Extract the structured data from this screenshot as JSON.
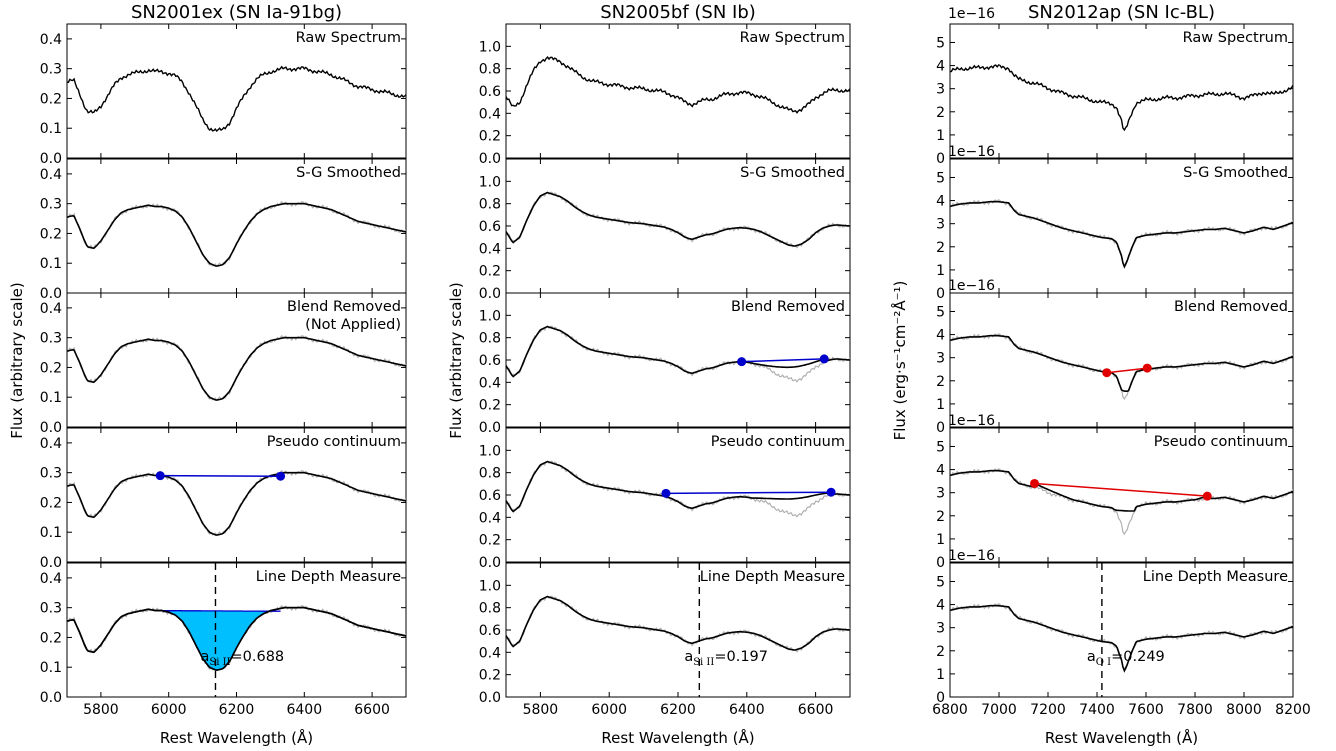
{
  "chart_data": [
    {
      "type": "line",
      "title": "SN2001ex (SN Ia-91bg)",
      "xlabel": "Rest Wavelength (Å)",
      "ylabel": "Flux (arbitrary scale)",
      "xlim": [
        5700,
        6700
      ],
      "ylim": [
        0,
        0.45
      ],
      "xticks": [
        "5800",
        "6000",
        "6200",
        "6400",
        "6600"
      ],
      "yticks": [
        "0.0",
        "0.1",
        "0.2",
        "0.3",
        "0.4"
      ],
      "colors": {
        "line": "#000000",
        "raw_gray": "#b0b0b0",
        "accent": "#0000cc",
        "fill": "#00bfff"
      },
      "panels": [
        {
          "label": "Raw Spectrum"
        },
        {
          "label": "S-G Smoothed"
        },
        {
          "label": "Blend Removed",
          "note": "(Not Applied)"
        },
        {
          "label": "Pseudo continuum",
          "endpoints": [
            [
              5975,
              0.29
            ],
            [
              6330,
              0.288
            ]
          ]
        },
        {
          "label": "Line Depth Measure",
          "dashed_x": 6138,
          "measure_text": "=0.688",
          "measure_symbol": "a",
          "measure_sub": "Si II"
        }
      ],
      "series": [
        {
          "x": [
            5700,
            5720,
            5740,
            5750,
            5760,
            5780,
            5800,
            5820,
            5840,
            5860,
            5880,
            5900,
            5920,
            5940,
            5960,
            5980,
            6000,
            6020,
            6040,
            6060,
            6080,
            6100,
            6120,
            6140,
            6160,
            6180,
            6200,
            6220,
            6240,
            6260,
            6280,
            6300,
            6320,
            6340,
            6360,
            6380,
            6400,
            6420,
            6440,
            6460,
            6480,
            6500,
            6520,
            6540,
            6560,
            6580,
            6600,
            6620,
            6640,
            6660,
            6680,
            6700
          ],
          "y": [
            0.255,
            0.26,
            0.21,
            0.18,
            0.155,
            0.15,
            0.175,
            0.21,
            0.245,
            0.27,
            0.28,
            0.285,
            0.29,
            0.295,
            0.29,
            0.29,
            0.285,
            0.275,
            0.255,
            0.22,
            0.175,
            0.13,
            0.1,
            0.09,
            0.095,
            0.12,
            0.165,
            0.205,
            0.24,
            0.265,
            0.28,
            0.29,
            0.295,
            0.3,
            0.3,
            0.3,
            0.3,
            0.295,
            0.29,
            0.285,
            0.28,
            0.27,
            0.26,
            0.25,
            0.24,
            0.235,
            0.23,
            0.225,
            0.22,
            0.215,
            0.21,
            0.205
          ]
        }
      ]
    },
    {
      "type": "line",
      "title": "SN2005bf (SN Ib)",
      "xlabel": "Rest Wavelength (Å)",
      "ylabel": "Flux (arbitrary scale)",
      "xlim": [
        5700,
        6700
      ],
      "ylim": [
        0,
        1.2
      ],
      "xticks": [
        "5800",
        "6000",
        "6200",
        "6400",
        "6600"
      ],
      "yticks": [
        "0.0",
        "0.2",
        "0.4",
        "0.6",
        "0.8",
        "1.0"
      ],
      "colors": {
        "line": "#000000",
        "raw_gray": "#b0b0b0",
        "accent": "#0000cc",
        "fill": "#00bfff"
      },
      "panels": [
        {
          "label": "Raw Spectrum"
        },
        {
          "label": "S-G Smoothed"
        },
        {
          "label": "Blend Removed",
          "endpoints": [
            [
              6385,
              0.585
            ],
            [
              6625,
              0.61
            ]
          ]
        },
        {
          "label": "Pseudo continuum",
          "endpoints": [
            [
              6165,
              0.615
            ],
            [
              6645,
              0.625
            ]
          ]
        },
        {
          "label": "Line Depth Measure",
          "dashed_x": 6262,
          "measure_text": "=0.197",
          "measure_symbol": "a",
          "measure_sub": "Si II"
        }
      ],
      "series": [
        {
          "x": [
            5700,
            5720,
            5740,
            5760,
            5780,
            5800,
            5820,
            5840,
            5860,
            5880,
            5900,
            5920,
            5940,
            5960,
            5980,
            6000,
            6020,
            6040,
            6060,
            6080,
            6100,
            6120,
            6140,
            6160,
            6180,
            6200,
            6220,
            6240,
            6260,
            6280,
            6300,
            6320,
            6340,
            6360,
            6380,
            6400,
            6420,
            6440,
            6460,
            6480,
            6500,
            6520,
            6540,
            6560,
            6580,
            6600,
            6620,
            6640,
            6660,
            6680,
            6700
          ],
          "y": [
            0.55,
            0.45,
            0.5,
            0.65,
            0.78,
            0.87,
            0.9,
            0.88,
            0.86,
            0.82,
            0.77,
            0.73,
            0.7,
            0.68,
            0.67,
            0.66,
            0.65,
            0.64,
            0.63,
            0.625,
            0.62,
            0.61,
            0.6,
            0.59,
            0.57,
            0.54,
            0.5,
            0.48,
            0.5,
            0.52,
            0.53,
            0.55,
            0.57,
            0.58,
            0.585,
            0.58,
            0.57,
            0.55,
            0.52,
            0.49,
            0.46,
            0.43,
            0.42,
            0.44,
            0.48,
            0.54,
            0.58,
            0.6,
            0.61,
            0.605,
            0.6
          ]
        }
      ]
    },
    {
      "type": "line",
      "title": "SN2012ap (SN Ic-BL)",
      "xlabel": "Rest Wavelength (Å)",
      "ylabel": "Flux (erg·s⁻¹cm⁻²Å⁻¹)",
      "xlim": [
        6800,
        8200
      ],
      "ylim": [
        0,
        5.8
      ],
      "xticks": [
        "6800",
        "7000",
        "7200",
        "7400",
        "7600",
        "7800",
        "8000",
        "8200"
      ],
      "yticks": [
        "0",
        "1",
        "2",
        "3",
        "4",
        "5"
      ],
      "offset_text": "1e−16",
      "colors": {
        "line": "#000000",
        "raw_gray": "#b0b0b0",
        "accent": "#e00000",
        "fill": "#f08070"
      },
      "panels": [
        {
          "label": "Raw Spectrum"
        },
        {
          "label": "S-G Smoothed"
        },
        {
          "label": "Blend Removed",
          "endpoints": [
            [
              7440,
              2.35
            ],
            [
              7605,
              2.55
            ]
          ]
        },
        {
          "label": "Pseudo continuum",
          "endpoints": [
            [
              7145,
              3.4
            ],
            [
              7850,
              2.85
            ]
          ]
        },
        {
          "label": "Line Depth Measure",
          "dashed_x": 7420,
          "measure_text": "=0.249",
          "measure_symbol": "a",
          "measure_sub": "O I"
        }
      ],
      "series": [
        {
          "x": [
            6800,
            6840,
            6880,
            6920,
            6960,
            7000,
            7040,
            7060,
            7080,
            7100,
            7140,
            7180,
            7220,
            7260,
            7300,
            7340,
            7380,
            7420,
            7460,
            7480,
            7500,
            7510,
            7520,
            7540,
            7560,
            7600,
            7640,
            7680,
            7720,
            7760,
            7800,
            7840,
            7880,
            7920,
            7960,
            8000,
            8040,
            8080,
            8120,
            8160,
            8200
          ],
          "y": [
            3.75,
            3.85,
            3.9,
            3.9,
            3.95,
            3.95,
            3.9,
            3.6,
            3.4,
            3.35,
            3.25,
            3.1,
            2.95,
            2.8,
            2.7,
            2.6,
            2.5,
            2.4,
            2.35,
            2.2,
            1.6,
            1.1,
            1.3,
            1.9,
            2.4,
            2.5,
            2.55,
            2.6,
            2.6,
            2.65,
            2.7,
            2.75,
            2.75,
            2.8,
            2.7,
            2.6,
            2.7,
            2.85,
            2.75,
            2.9,
            3.05
          ]
        }
      ]
    }
  ]
}
